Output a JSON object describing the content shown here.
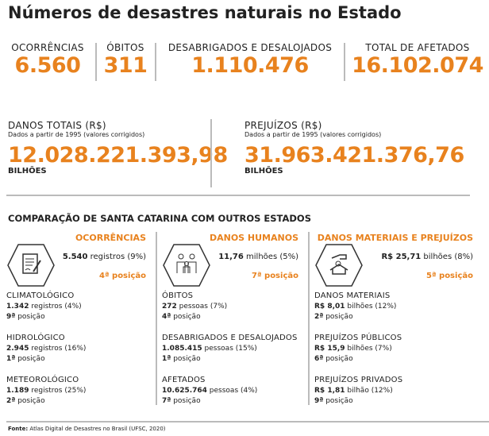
{
  "title": "Números de desastres naturais no Estado",
  "top_stats": [
    {
      "label": "OCORRÊNCIAS",
      "value": "6.560"
    },
    {
      "label": "ÓBITOS",
      "value": "311"
    },
    {
      "label": "DESABRIGADOS E DESALOJADOS",
      "value": "1.110.476"
    },
    {
      "label": "TOTAL DE AFETADOS",
      "value": "16.102.074"
    }
  ],
  "money": [
    {
      "label": "DANOS TOTAIS (R$)",
      "note": "Dados a partir de 1995 (valores corrigidos)",
      "value": "12.028.221.393,98",
      "unit": "BILHÕES"
    },
    {
      "label": "PREJUÍZOS (R$)",
      "note": "Dados a partir de 1995 (valores corrigidos)",
      "value": "31.963.421.376,76",
      "unit": "BILHÕES"
    }
  ],
  "comparison": {
    "title": "COMPARAÇÃO DE SANTA CATARINA COM OUTROS ESTADOS",
    "accent": "#e8821e",
    "columns": [
      {
        "heading": "OCORRÊNCIAS",
        "icon": "document-signature-icon",
        "main_bold": "5.540",
        "main_rest": " registros (9%)",
        "rank": "4ª posição",
        "items": [
          {
            "label": "CLIMATOLÓGICO",
            "bold": "1.342",
            "rest": " registros (4%)",
            "rank_bold": "9ª",
            "rank_rest": " posição"
          },
          {
            "label": "HIDROLÓGICO",
            "bold": "2.945",
            "rest": " registros (16%)",
            "rank_bold": "1ª",
            "rank_rest": " posição"
          },
          {
            "label": "METEOROLÓGICO",
            "bold": "1.189",
            "rest": " registros (25%)",
            "rank_bold": "2ª",
            "rank_rest": " posição"
          }
        ]
      },
      {
        "heading": "DANOS HUMANOS",
        "icon": "family-icon",
        "main_bold": "11,76",
        "main_rest": " milhões (5%)",
        "rank": "7ª posição",
        "items": [
          {
            "label": "ÓBITOS",
            "bold": "272",
            "rest": " pessoas (7%)",
            "rank_bold": "4ª",
            "rank_rest": " posição"
          },
          {
            "label": "DESABRIGADOS E DESALOJADOS",
            "bold": "1.085.415",
            "rest": " pessoas (15%)",
            "rank_bold": "1ª",
            "rank_rest": " posição"
          },
          {
            "label": "AFETADOS",
            "bold": "10.625.764",
            "rest": " pessoas (4%)",
            "rank_bold": "7ª",
            "rank_rest": " posição"
          }
        ]
      },
      {
        "heading": "DANOS MATERIAIS E PREJUÍZOS",
        "icon": "hand-house-icon",
        "main_bold": "R$ 25,71",
        "main_rest": " bilhões (8%)",
        "rank": "5ª posição",
        "items": [
          {
            "label": "DANOS MATERIAIS",
            "bold": "R$ 8,01",
            "rest": " bilhões (12%)",
            "rank_bold": "2ª",
            "rank_rest": " posição"
          },
          {
            "label": "PREJUÍZOS PÚBLICOS",
            "bold": "R$ 15,9",
            "rest": " bilhões (7%)",
            "rank_bold": "6ª",
            "rank_rest": " posição"
          },
          {
            "label": "PREJUÍZOS PRIVADOS",
            "bold": "R$ 1,81",
            "rest": " bilhão (12%)",
            "rank_bold": "9ª",
            "rank_rest": " posição"
          }
        ]
      }
    ]
  },
  "source": {
    "bold": "Fonte:",
    "rest": " Atlas Digital de Desastres no Brasil (UFSC, 2020)"
  }
}
